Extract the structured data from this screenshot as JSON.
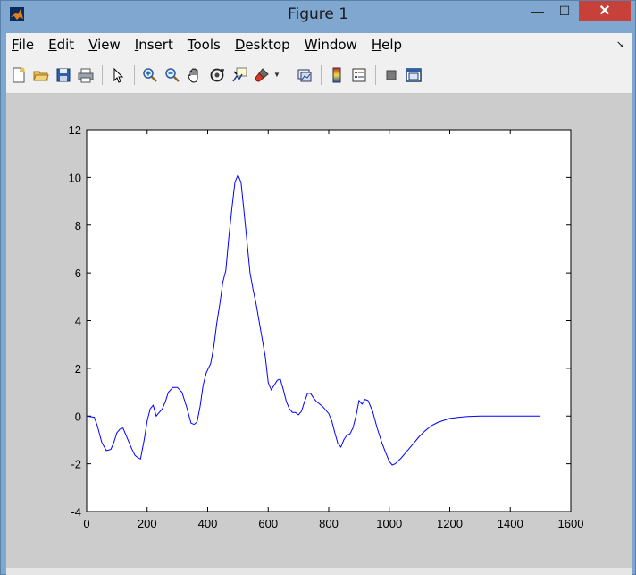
{
  "window": {
    "title": "Figure 1",
    "minimize_glyph": "—",
    "maximize_glyph": "☐",
    "close_glyph": "✕"
  },
  "menubar": {
    "items": [
      {
        "name": "file",
        "mnemonic": "F",
        "rest": "ile"
      },
      {
        "name": "edit",
        "mnemonic": "E",
        "rest": "dit"
      },
      {
        "name": "view",
        "mnemonic": "V",
        "rest": "iew"
      },
      {
        "name": "insert",
        "mnemonic": "I",
        "rest": "nsert"
      },
      {
        "name": "tools",
        "mnemonic": "T",
        "rest": "ools"
      },
      {
        "name": "desktop",
        "mnemonic": "D",
        "rest": "esktop"
      },
      {
        "name": "window",
        "mnemonic": "W",
        "rest": "indow"
      },
      {
        "name": "help",
        "mnemonic": "H",
        "rest": "elp"
      }
    ],
    "dock_arrow": "↘"
  },
  "toolbar": {
    "buttons": [
      "new-figure-icon",
      "open-file-icon",
      "save-icon",
      "print-icon",
      "pointer-icon",
      "zoom-in-icon",
      "zoom-out-icon",
      "pan-hand-icon",
      "rotate-3d-icon",
      "data-cursor-icon",
      "brush-icon",
      "link-plot-icon",
      "colorbar-icon",
      "legend-icon",
      "hide-plot-tools-icon",
      "show-plot-tools-icon"
    ]
  },
  "colors": {
    "line": "#0000ff",
    "figure_bg": "#cccccc",
    "axes_bg": "#ffffff"
  },
  "chart_data": {
    "type": "line",
    "xlim": [
      0,
      1600
    ],
    "ylim": [
      -4,
      12
    ],
    "xticks": [
      0,
      200,
      400,
      600,
      800,
      1000,
      1200,
      1400,
      1600
    ],
    "yticks": [
      -4,
      -2,
      0,
      2,
      4,
      6,
      8,
      10,
      12
    ],
    "grid": false,
    "series": [
      {
        "x": [
          0,
          25,
          35,
          50,
          65,
          80,
          90,
          100,
          110,
          120,
          130,
          140,
          150,
          160,
          170,
          178,
          190,
          200,
          210,
          220,
          230,
          240,
          250,
          260,
          270,
          285,
          300,
          315,
          330,
          345,
          355,
          365,
          375,
          385,
          395,
          410,
          420,
          430,
          440,
          450,
          460,
          470,
          480,
          490,
          500,
          510,
          520,
          530,
          540,
          550,
          560,
          575,
          590,
          600,
          610,
          620,
          630,
          640,
          650,
          660,
          670,
          680,
          690,
          700,
          710,
          720,
          730,
          740,
          750,
          760,
          780,
          800,
          810,
          820,
          830,
          840,
          850,
          860,
          870,
          880,
          890,
          900,
          910,
          920,
          930,
          945,
          960,
          975,
          990,
          1000,
          1010,
          1020,
          1040,
          1060,
          1080,
          1100,
          1120,
          1140,
          1160,
          1180,
          1200,
          1230,
          1260,
          1300,
          1350,
          1400,
          1450,
          1500
        ],
        "y": [
          0.0,
          -0.05,
          -0.4,
          -1.1,
          -1.45,
          -1.4,
          -1.1,
          -0.7,
          -0.55,
          -0.5,
          -0.8,
          -1.1,
          -1.4,
          -1.65,
          -1.75,
          -1.8,
          -1.0,
          -0.2,
          0.3,
          0.45,
          0.0,
          0.15,
          0.3,
          0.6,
          1.0,
          1.2,
          1.2,
          1.0,
          0.4,
          -0.3,
          -0.35,
          -0.25,
          0.4,
          1.3,
          1.8,
          2.2,
          2.9,
          3.9,
          4.7,
          5.6,
          6.1,
          7.5,
          8.7,
          9.8,
          10.1,
          9.8,
          8.6,
          7.3,
          6.0,
          5.3,
          4.7,
          3.6,
          2.5,
          1.4,
          1.1,
          1.3,
          1.5,
          1.55,
          1.1,
          0.6,
          0.3,
          0.15,
          0.15,
          0.05,
          0.2,
          0.6,
          0.95,
          0.95,
          0.75,
          0.6,
          0.4,
          0.1,
          -0.2,
          -0.7,
          -1.15,
          -1.3,
          -1.0,
          -0.8,
          -0.75,
          -0.5,
          0.0,
          0.65,
          0.5,
          0.7,
          0.65,
          0.2,
          -0.5,
          -1.1,
          -1.6,
          -1.9,
          -2.05,
          -2.0,
          -1.75,
          -1.45,
          -1.15,
          -0.85,
          -0.6,
          -0.4,
          -0.27,
          -0.18,
          -0.1,
          -0.05,
          -0.02,
          0.0,
          0.0,
          0.0,
          0.0,
          0.0
        ]
      }
    ]
  }
}
